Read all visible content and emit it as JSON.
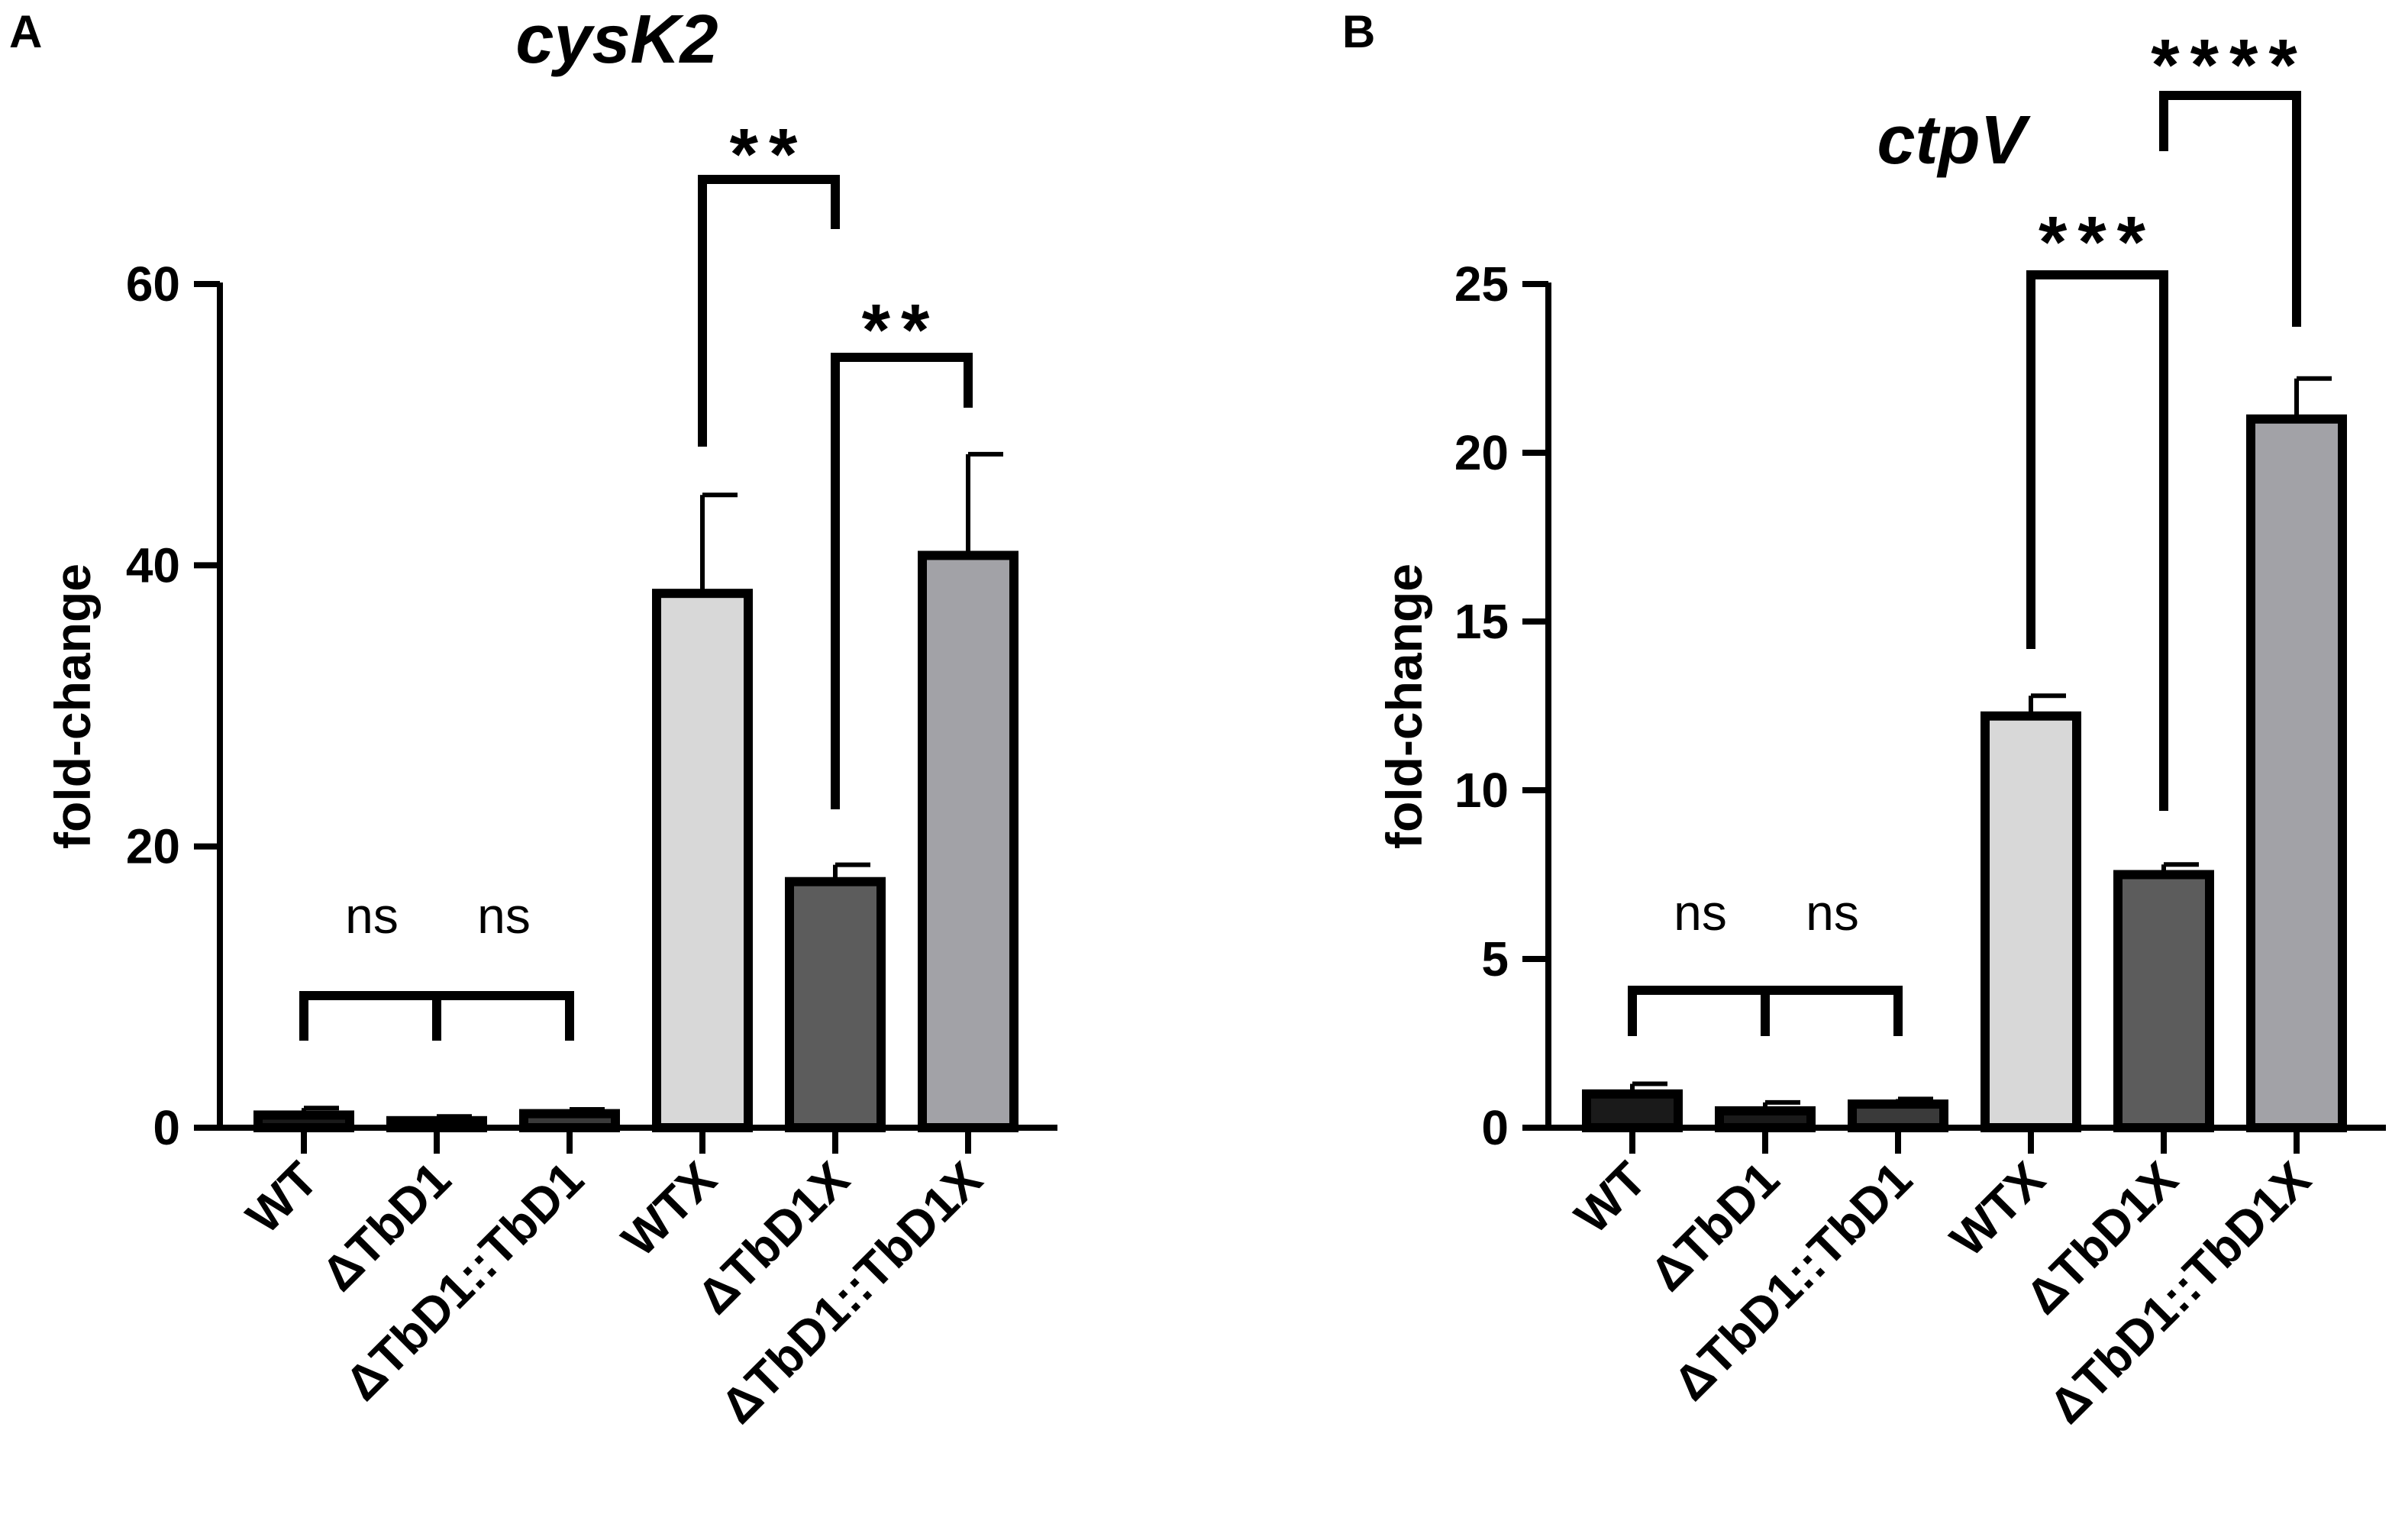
{
  "chart_data": [
    {
      "panel": "A",
      "type": "bar",
      "title": "cysK2",
      "ylabel": "fold-change",
      "xlabel": "",
      "ylim": [
        0,
        60
      ],
      "yticks": [
        0,
        20,
        40,
        60
      ],
      "grid": false,
      "categories": [
        "WT",
        "ΔTbD1",
        "ΔTbD1::TbD1",
        "WTX",
        "ΔTbD1X",
        "ΔTbD1::TbD1X"
      ],
      "values": [
        0.9,
        0.5,
        1.0,
        38.0,
        17.5,
        40.7
      ],
      "errors": [
        0.5,
        0.3,
        0.3,
        7.0,
        1.2,
        7.2
      ],
      "colors": [
        "#1a1a1a",
        "#1a1a1a",
        "#3a3a3a",
        "#d8d8d8",
        "#5c5c5c",
        "#a2a2a7"
      ],
      "comparisons": [
        {
          "from": 0,
          "to": 1,
          "label": "ns"
        },
        {
          "from": 1,
          "to": 2,
          "label": "ns"
        },
        {
          "from": 3,
          "to": 4,
          "label": "**"
        },
        {
          "from": 4,
          "to": 5,
          "label": "**"
        }
      ]
    },
    {
      "panel": "B",
      "type": "bar",
      "title": "ctpV",
      "ylabel": "fold-change",
      "xlabel": "",
      "ylim": [
        0,
        25
      ],
      "yticks": [
        0,
        5,
        10,
        15,
        20,
        25
      ],
      "grid": false,
      "categories": [
        "WT",
        "ΔTbD1",
        "ΔTbD1::TbD1",
        "WTX",
        "ΔTbD1X",
        "ΔTbD1::TbD1X"
      ],
      "values": [
        1.0,
        0.5,
        0.7,
        12.2,
        7.5,
        21.0
      ],
      "errors": [
        0.3,
        0.25,
        0.15,
        0.6,
        0.3,
        1.2
      ],
      "colors": [
        "#1a1a1a",
        "#1a1a1a",
        "#3a3a3a",
        "#d8d8d8",
        "#5c5c5c",
        "#a2a2a7"
      ],
      "comparisons": [
        {
          "from": 0,
          "to": 1,
          "label": "ns"
        },
        {
          "from": 1,
          "to": 2,
          "label": "ns"
        },
        {
          "from": 3,
          "to": 4,
          "label": "***"
        },
        {
          "from": 4,
          "to": 5,
          "label": "****"
        }
      ]
    }
  ]
}
